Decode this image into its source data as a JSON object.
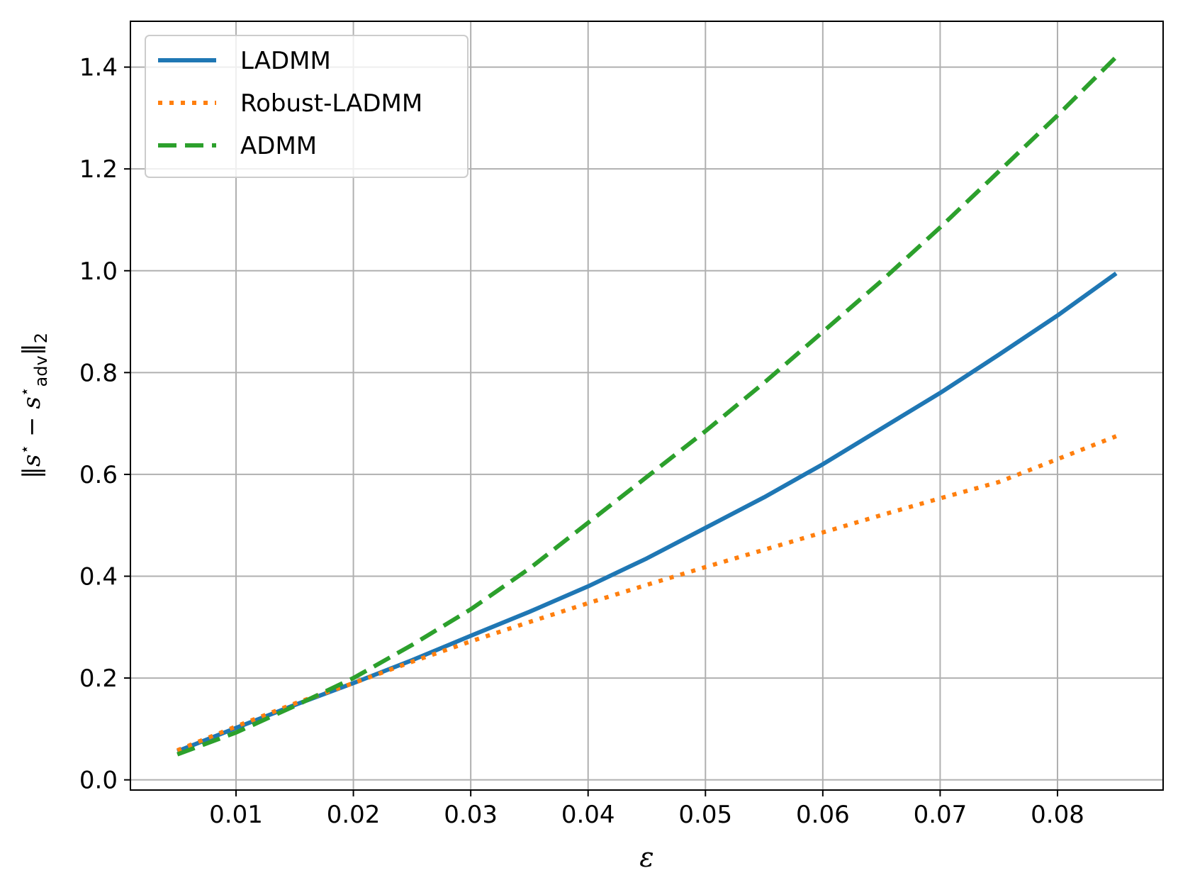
{
  "chart_data": {
    "type": "line",
    "xlabel": "ε",
    "ylabel": {
      "norm_open": "‖s",
      "star": "⋆",
      "minus": " − s",
      "star2": "⋆",
      "sub": "adv",
      "norm_close": "‖",
      "sub2": "2"
    },
    "xlim": [
      0.001,
      0.089
    ],
    "ylim": [
      -0.02,
      1.49
    ],
    "xticks": [
      0.01,
      0.02,
      0.03,
      0.04,
      0.05,
      0.06,
      0.07,
      0.08
    ],
    "xtick_labels": [
      "0.01",
      "0.02",
      "0.03",
      "0.04",
      "0.05",
      "0.06",
      "0.07",
      "0.08"
    ],
    "yticks": [
      0.0,
      0.2,
      0.4,
      0.6,
      0.8,
      1.0,
      1.2,
      1.4
    ],
    "ytick_labels": [
      "0.0",
      "0.2",
      "0.4",
      "0.6",
      "0.8",
      "1.0",
      "1.2",
      "1.4"
    ],
    "grid": true,
    "legend_position": "top-left",
    "x": [
      0.005,
      0.01,
      0.015,
      0.02,
      0.025,
      0.03,
      0.035,
      0.04,
      0.045,
      0.05,
      0.055,
      0.06,
      0.065,
      0.07,
      0.075,
      0.08,
      0.085
    ],
    "series": [
      {
        "name": "LADMM",
        "style": "solid",
        "color": "#1f77b4",
        "values": [
          0.056,
          0.102,
          0.147,
          0.19,
          0.235,
          0.283,
          0.33,
          0.38,
          0.435,
          0.495,
          0.555,
          0.62,
          0.69,
          0.76,
          0.835,
          0.912,
          0.995
        ]
      },
      {
        "name": "Robust-LADMM",
        "style": "dotted",
        "color": "#ff7f0e",
        "values": [
          0.058,
          0.105,
          0.15,
          0.19,
          0.232,
          0.272,
          0.31,
          0.347,
          0.383,
          0.418,
          0.452,
          0.486,
          0.52,
          0.553,
          0.585,
          0.63,
          0.675
        ]
      },
      {
        "name": "ADMM",
        "style": "dashed",
        "color": "#2ca02c",
        "values": [
          0.05,
          0.093,
          0.145,
          0.2,
          0.265,
          0.335,
          0.415,
          0.505,
          0.595,
          0.685,
          0.78,
          0.88,
          0.98,
          1.085,
          1.195,
          1.305,
          1.42
        ]
      }
    ]
  }
}
